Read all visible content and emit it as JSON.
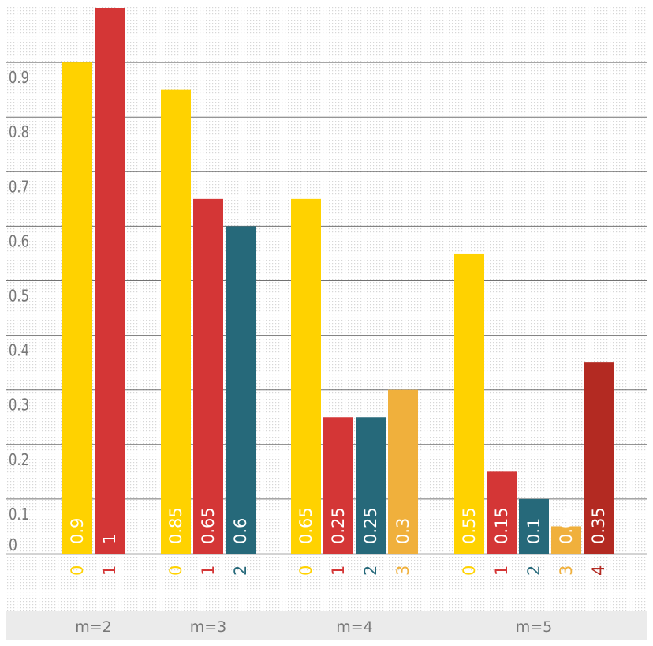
{
  "chart_data": {
    "type": "bar",
    "title": "",
    "xlabel": "",
    "ylabel": "",
    "ylim": [
      0,
      1
    ],
    "y_ticks": [
      "0",
      "0.1",
      "0.2",
      "0.3",
      "0.4",
      "0.5",
      "0.6",
      "0.7",
      "0.8",
      "0.9"
    ],
    "grid": true,
    "legend": "none",
    "colors": {
      "0": "#ffd200",
      "1": "#d43636",
      "2": "#26697a",
      "3": "#f0b03c",
      "4": "#b32a22",
      "label_text": "#ffffff",
      "axis_text": "#777777",
      "grid": "#444444",
      "footer_bg": "#ebebeb"
    },
    "groups": [
      {
        "name": "m=2",
        "bars": [
          {
            "category": "0",
            "value": 0.9,
            "label": "0.9"
          },
          {
            "category": "1",
            "value": 1,
            "label": "1"
          }
        ]
      },
      {
        "name": "m=3",
        "bars": [
          {
            "category": "0",
            "value": 0.85,
            "label": "0.85"
          },
          {
            "category": "1",
            "value": 0.65,
            "label": "0.65"
          },
          {
            "category": "2",
            "value": 0.6,
            "label": "0.6"
          }
        ]
      },
      {
        "name": "m=4",
        "bars": [
          {
            "category": "0",
            "value": 0.65,
            "label": "0.65"
          },
          {
            "category": "1",
            "value": 0.25,
            "label": "0.25"
          },
          {
            "category": "2",
            "value": 0.25,
            "label": "0.25"
          },
          {
            "category": "3",
            "value": 0.3,
            "label": "0.3"
          }
        ]
      },
      {
        "name": "m=5",
        "bars": [
          {
            "category": "0",
            "value": 0.55,
            "label": "0.55"
          },
          {
            "category": "1",
            "value": 0.15,
            "label": "0.15"
          },
          {
            "category": "2",
            "value": 0.1,
            "label": "0.1"
          },
          {
            "category": "3",
            "value": 0.05,
            "label": "0.05"
          },
          {
            "category": "4",
            "value": 0.35,
            "label": "0.35"
          }
        ]
      }
    ]
  }
}
